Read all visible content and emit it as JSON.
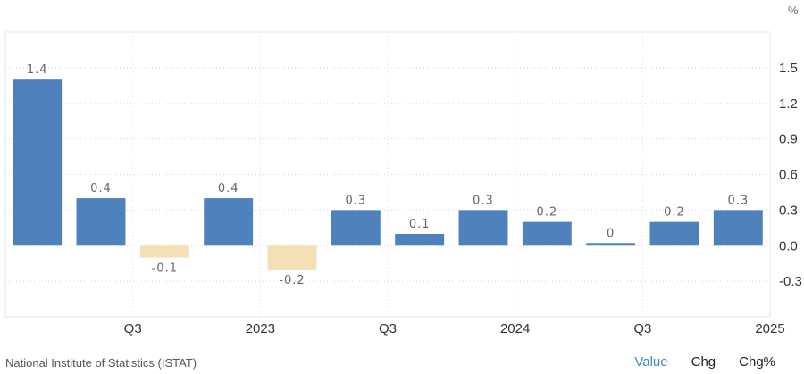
{
  "chart_data": {
    "type": "bar",
    "unit": "%",
    "x_tick_labels": [
      "Q3",
      "2023",
      "Q3",
      "2024",
      "Q3",
      "2025"
    ],
    "values": [
      1.4,
      0.4,
      -0.1,
      0.4,
      -0.2,
      0.3,
      0.1,
      0.3,
      0.2,
      0.0,
      0.2,
      0.3
    ],
    "data_labels": [
      "1.4",
      "0.4",
      "-0.1",
      "0.4",
      "-0.2",
      "0.3",
      "0.1",
      "0.3",
      "0.2",
      "0",
      "0.2",
      "0.3"
    ],
    "y_ticks": [
      1.5,
      1.2,
      0.9,
      0.6,
      0.3,
      0.0,
      -0.3
    ],
    "y_tick_labels": [
      "1.5",
      "1.2",
      "0.9",
      "0.6",
      "0.3",
      "0.0",
      "-0.3"
    ],
    "ylim": [
      -0.6,
      1.8
    ],
    "grid": true,
    "colors": {
      "positive": "#4f81bd",
      "negative": "#f5dfb5"
    }
  },
  "source": "National Institute of Statistics (ISTAT)",
  "tabs": [
    {
      "label": "Value",
      "active": true
    },
    {
      "label": "Chg",
      "active": false
    },
    {
      "label": "Chg%",
      "active": false
    }
  ]
}
